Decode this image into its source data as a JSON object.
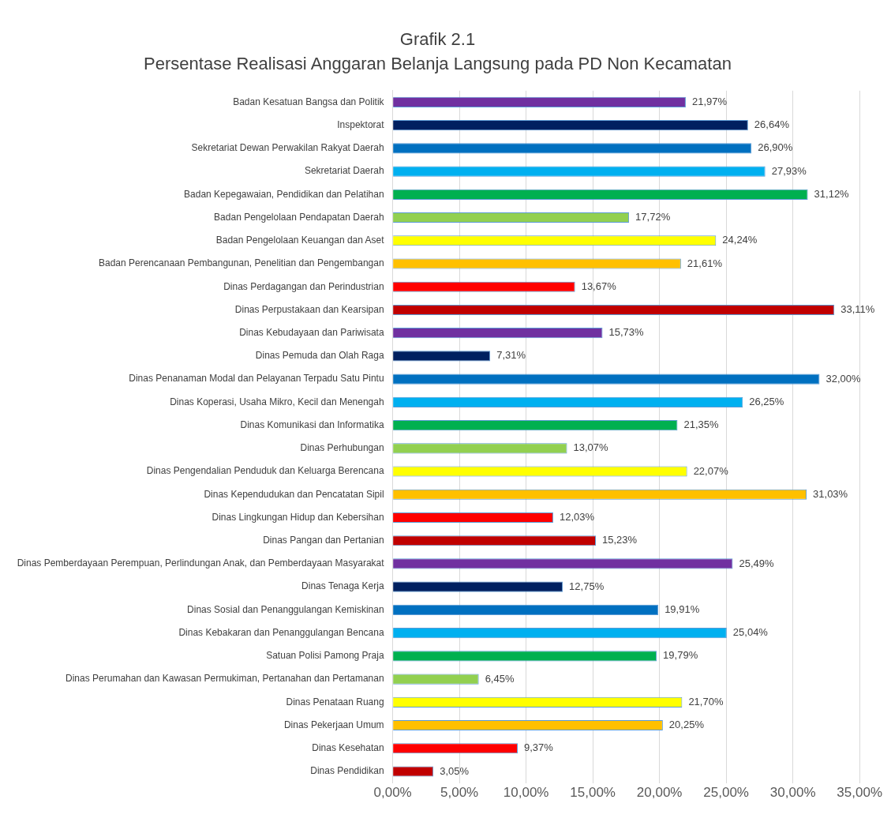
{
  "chart_data": {
    "type": "bar",
    "orientation": "horizontal",
    "title": "Grafik 2.1",
    "subtitle": "Persentase Realisasi Anggaran Belanja Langsung pada PD Non Kecamatan",
    "categories": [
      "Badan Kesatuan Bangsa dan Politik",
      "Inspektorat",
      "Sekretariat Dewan Perwakilan Rakyat Daerah",
      "Sekretariat Daerah",
      "Badan Kepegawaian, Pendidikan dan Pelatihan",
      "Badan Pengelolaan Pendapatan Daerah",
      "Badan Pengelolaan Keuangan dan Aset",
      "Badan Perencanaan Pembangunan, Penelitian dan Pengembangan",
      "Dinas Perdagangan dan Perindustrian",
      "Dinas Perpustakaan dan Kearsipan",
      "Dinas Kebudayaan dan Pariwisata",
      "Dinas Pemuda dan Olah Raga",
      "Dinas Penanaman Modal dan Pelayanan Terpadu Satu Pintu",
      "Dinas Koperasi, Usaha Mikro, Kecil dan Menengah",
      "Dinas Komunikasi dan Informatika",
      "Dinas Perhubungan",
      "Dinas Pengendalian Penduduk dan Keluarga Berencana",
      "Dinas Kependudukan dan Pencatatan Sipil",
      "Dinas Lingkungan Hidup dan Kebersihan",
      "Dinas Pangan dan Pertanian",
      "Dinas Pemberdayaan Perempuan, Perlindungan Anak, dan Pemberdayaan Masyarakat",
      "Dinas Tenaga Kerja",
      "Dinas Sosial dan Penanggulangan Kemiskinan",
      "Dinas Kebakaran dan Penanggulangan Bencana",
      "Satuan Polisi Pamong Praja",
      "Dinas Perumahan dan Kawasan Permukiman, Pertanahan dan Pertamanan",
      "Dinas Penataan Ruang",
      "Dinas Pekerjaan Umum",
      "Dinas Kesehatan",
      "Dinas Pendidikan"
    ],
    "values": [
      21.97,
      26.64,
      26.9,
      27.93,
      31.12,
      17.72,
      24.24,
      21.61,
      13.67,
      33.11,
      15.73,
      7.31,
      32.0,
      26.25,
      21.35,
      13.07,
      22.07,
      31.03,
      12.03,
      15.23,
      25.49,
      12.75,
      19.91,
      25.04,
      19.79,
      6.45,
      21.7,
      20.25,
      9.37,
      3.05
    ],
    "value_labels": [
      "21,97%",
      "26,64%",
      "26,90%",
      "27,93%",
      "31,12%",
      "17,72%",
      "24,24%",
      "21,61%",
      "13,67%",
      "33,11%",
      "15,73%",
      "7,31%",
      "32,00%",
      "26,25%",
      "21,35%",
      "13,07%",
      "22,07%",
      "31,03%",
      "12,03%",
      "15,23%",
      "25,49%",
      "12,75%",
      "19,91%",
      "25,04%",
      "19,79%",
      "6,45%",
      "21,70%",
      "20,25%",
      "9,37%",
      "3,05%"
    ],
    "colors": [
      "#7030a0",
      "#002060",
      "#0070c0",
      "#00b0f0",
      "#00b050",
      "#92d050",
      "#ffff00",
      "#ffc000",
      "#ff0000",
      "#c00000",
      "#7030a0",
      "#002060",
      "#0070c0",
      "#00b0f0",
      "#00b050",
      "#92d050",
      "#ffff00",
      "#ffc000",
      "#ff0000",
      "#c00000",
      "#7030a0",
      "#002060",
      "#0070c0",
      "#00b0f0",
      "#00b050",
      "#92d050",
      "#ffff00",
      "#ffc000",
      "#ff0000",
      "#c00000"
    ],
    "xlim": [
      0,
      35
    ],
    "xticks": [
      {
        "value": 0,
        "label": "0,00%"
      },
      {
        "value": 5,
        "label": "5,00%"
      },
      {
        "value": 10,
        "label": "10,00%"
      },
      {
        "value": 15,
        "label": "15,00%"
      },
      {
        "value": 20,
        "label": "20,00%"
      },
      {
        "value": 25,
        "label": "25,00%"
      },
      {
        "value": 30,
        "label": "30,00%"
      },
      {
        "value": 35,
        "label": "35,00%"
      }
    ],
    "grid": "x",
    "legend": false
  }
}
